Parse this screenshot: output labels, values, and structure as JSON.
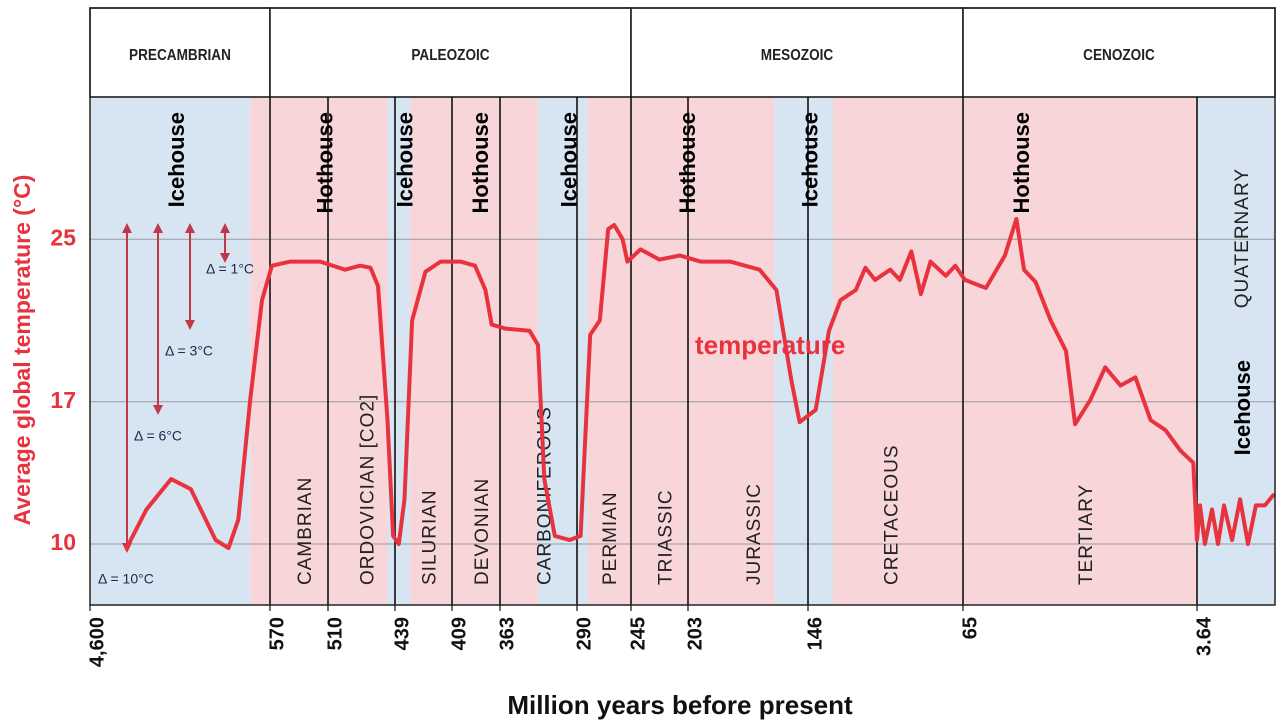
{
  "chart_data": {
    "type": "line",
    "y_label": "Average global temperature (°C)",
    "x_label": "Million years before present",
    "xlim": [
      4600,
      0
    ],
    "xticks": [
      {
        "value": 4600,
        "label": "4,600"
      },
      570,
      510,
      439,
      409,
      363,
      290,
      245,
      203,
      146,
      65,
      3.64
    ],
    "ylim": [
      7,
      32
    ],
    "yticks": [
      10,
      17,
      25
    ],
    "grid": true,
    "eras": [
      {
        "name": "PRECAMBRIAN",
        "start": 4600,
        "end": 570
      },
      {
        "name": "PALEOZOIC",
        "start": 570,
        "end": 245
      },
      {
        "name": "MESOZOIC",
        "start": 245,
        "end": 65
      },
      {
        "name": "CENOZOIC",
        "start": 65,
        "end": 0
      }
    ],
    "periods": [
      {
        "name": "CAMBRIAN",
        "start": 570,
        "end": 510
      },
      {
        "name": "ORDOVICIAN [CO2]",
        "start": 510,
        "end": 439
      },
      {
        "name": "SILURIAN",
        "start": 439,
        "end": 409
      },
      {
        "name": "DEVONIAN",
        "start": 409,
        "end": 363
      },
      {
        "name": "CARBONIFEROUS",
        "start": 363,
        "end": 290
      },
      {
        "name": "PERMIAN",
        "start": 290,
        "end": 245
      },
      {
        "name": "TRIASSIC",
        "start": 245,
        "end": 203
      },
      {
        "name": "JURASSIC",
        "start": 203,
        "end": 146
      },
      {
        "name": "CRETACEOUS",
        "start": 146,
        "end": 65
      },
      {
        "name": "TERTIARY",
        "start": 65,
        "end": 3.64
      },
      {
        "name": "QUATERNARY",
        "start": 3.64,
        "end": 0
      }
    ],
    "climate_bands": [
      {
        "label": "Icehouse",
        "start": 4600,
        "end": 1013,
        "color": "#d7e4f1"
      },
      {
        "label": "Hothouse",
        "start": 1013,
        "end": 447,
        "color": "#f8d5d8"
      },
      {
        "label": "Icehouse",
        "start": 447,
        "end": 431,
        "color": "#d7e4f1"
      },
      {
        "label": "Hothouse",
        "start": 431,
        "end": 327,
        "color": "#f8d5d8"
      },
      {
        "label": "Icehouse",
        "start": 327,
        "end": 281,
        "color": "#d7e4f1"
      },
      {
        "label": "Hothouse",
        "start": 281,
        "end": 162,
        "color": "#f8d5d8"
      },
      {
        "label": "Icehouse",
        "start": 162,
        "end": 133,
        "color": "#d7e4f1"
      },
      {
        "label": "Hothouse",
        "start": 133,
        "end": 3.64,
        "color": "#f8d5d8"
      },
      {
        "label": "Icehouse",
        "start": 3.64,
        "end": 0,
        "color": "#d7e4f1"
      }
    ],
    "annotations": [
      "Δ = 1°C",
      "Δ = 3°C",
      "Δ = 6°C",
      "Δ = 10°C"
    ],
    "series": [
      {
        "name": "temperature",
        "color": "#e8333e",
        "x": [
          3781,
          3338,
          2784,
          2342,
          1788,
          1500,
          1279,
          1013,
          748,
          568,
          549,
          518,
          492,
          476,
          465,
          457,
          447,
          441,
          437,
          434,
          430,
          423,
          415,
          401,
          387,
          377,
          371,
          358,
          335,
          327,
          321,
          311,
          297,
          287,
          279,
          271,
          264,
          259,
          252,
          248,
          238,
          224,
          209,
          197,
          183,
          169,
          161,
          154,
          150,
          142,
          135,
          129,
          121,
          116,
          111,
          103,
          98,
          92,
          87,
          82,
          74,
          69,
          64.5,
          59,
          54,
          51,
          49,
          46,
          42,
          38,
          35.6,
          31.6,
          27.7,
          23.7,
          19.8,
          15.8,
          11.9,
          8,
          4.6,
          3.64,
          3.5,
          3.27,
          2.94,
          2.66,
          2.38,
          2,
          1.63,
          1.26,
          0.89,
          0.47,
          0.09
        ],
        "values": [
          9.8,
          11.7,
          13.2,
          12.7,
          10.2,
          9.8,
          11.2,
          17.1,
          22.0,
          23.7,
          23.9,
          23.9,
          23.5,
          23.7,
          23.6,
          22.7,
          16.1,
          10.4,
          10.0,
          12.2,
          21.0,
          23.4,
          23.9,
          23.9,
          23.7,
          22.5,
          20.8,
          20.6,
          20.5,
          19.8,
          13.2,
          10.4,
          10.2,
          10.4,
          20.3,
          21.0,
          25.5,
          25.7,
          25.0,
          23.9,
          24.5,
          24.0,
          24.2,
          23.9,
          23.9,
          23.5,
          22.5,
          18.1,
          16.0,
          16.6,
          20.5,
          22.0,
          22.5,
          23.6,
          23.0,
          23.5,
          23.0,
          24.4,
          22.3,
          23.9,
          23.2,
          23.7,
          23.0,
          22.6,
          24.2,
          26.0,
          23.5,
          22.9,
          21.0,
          19.5,
          15.9,
          17.1,
          18.7,
          17.8,
          18.2,
          16.1,
          15.6,
          14.6,
          14.0,
          10.2,
          11.9,
          10.0,
          11.7,
          10.0,
          11.9,
          10.2,
          12.2,
          10.0,
          11.9,
          11.9,
          12.4
        ]
      }
    ]
  }
}
